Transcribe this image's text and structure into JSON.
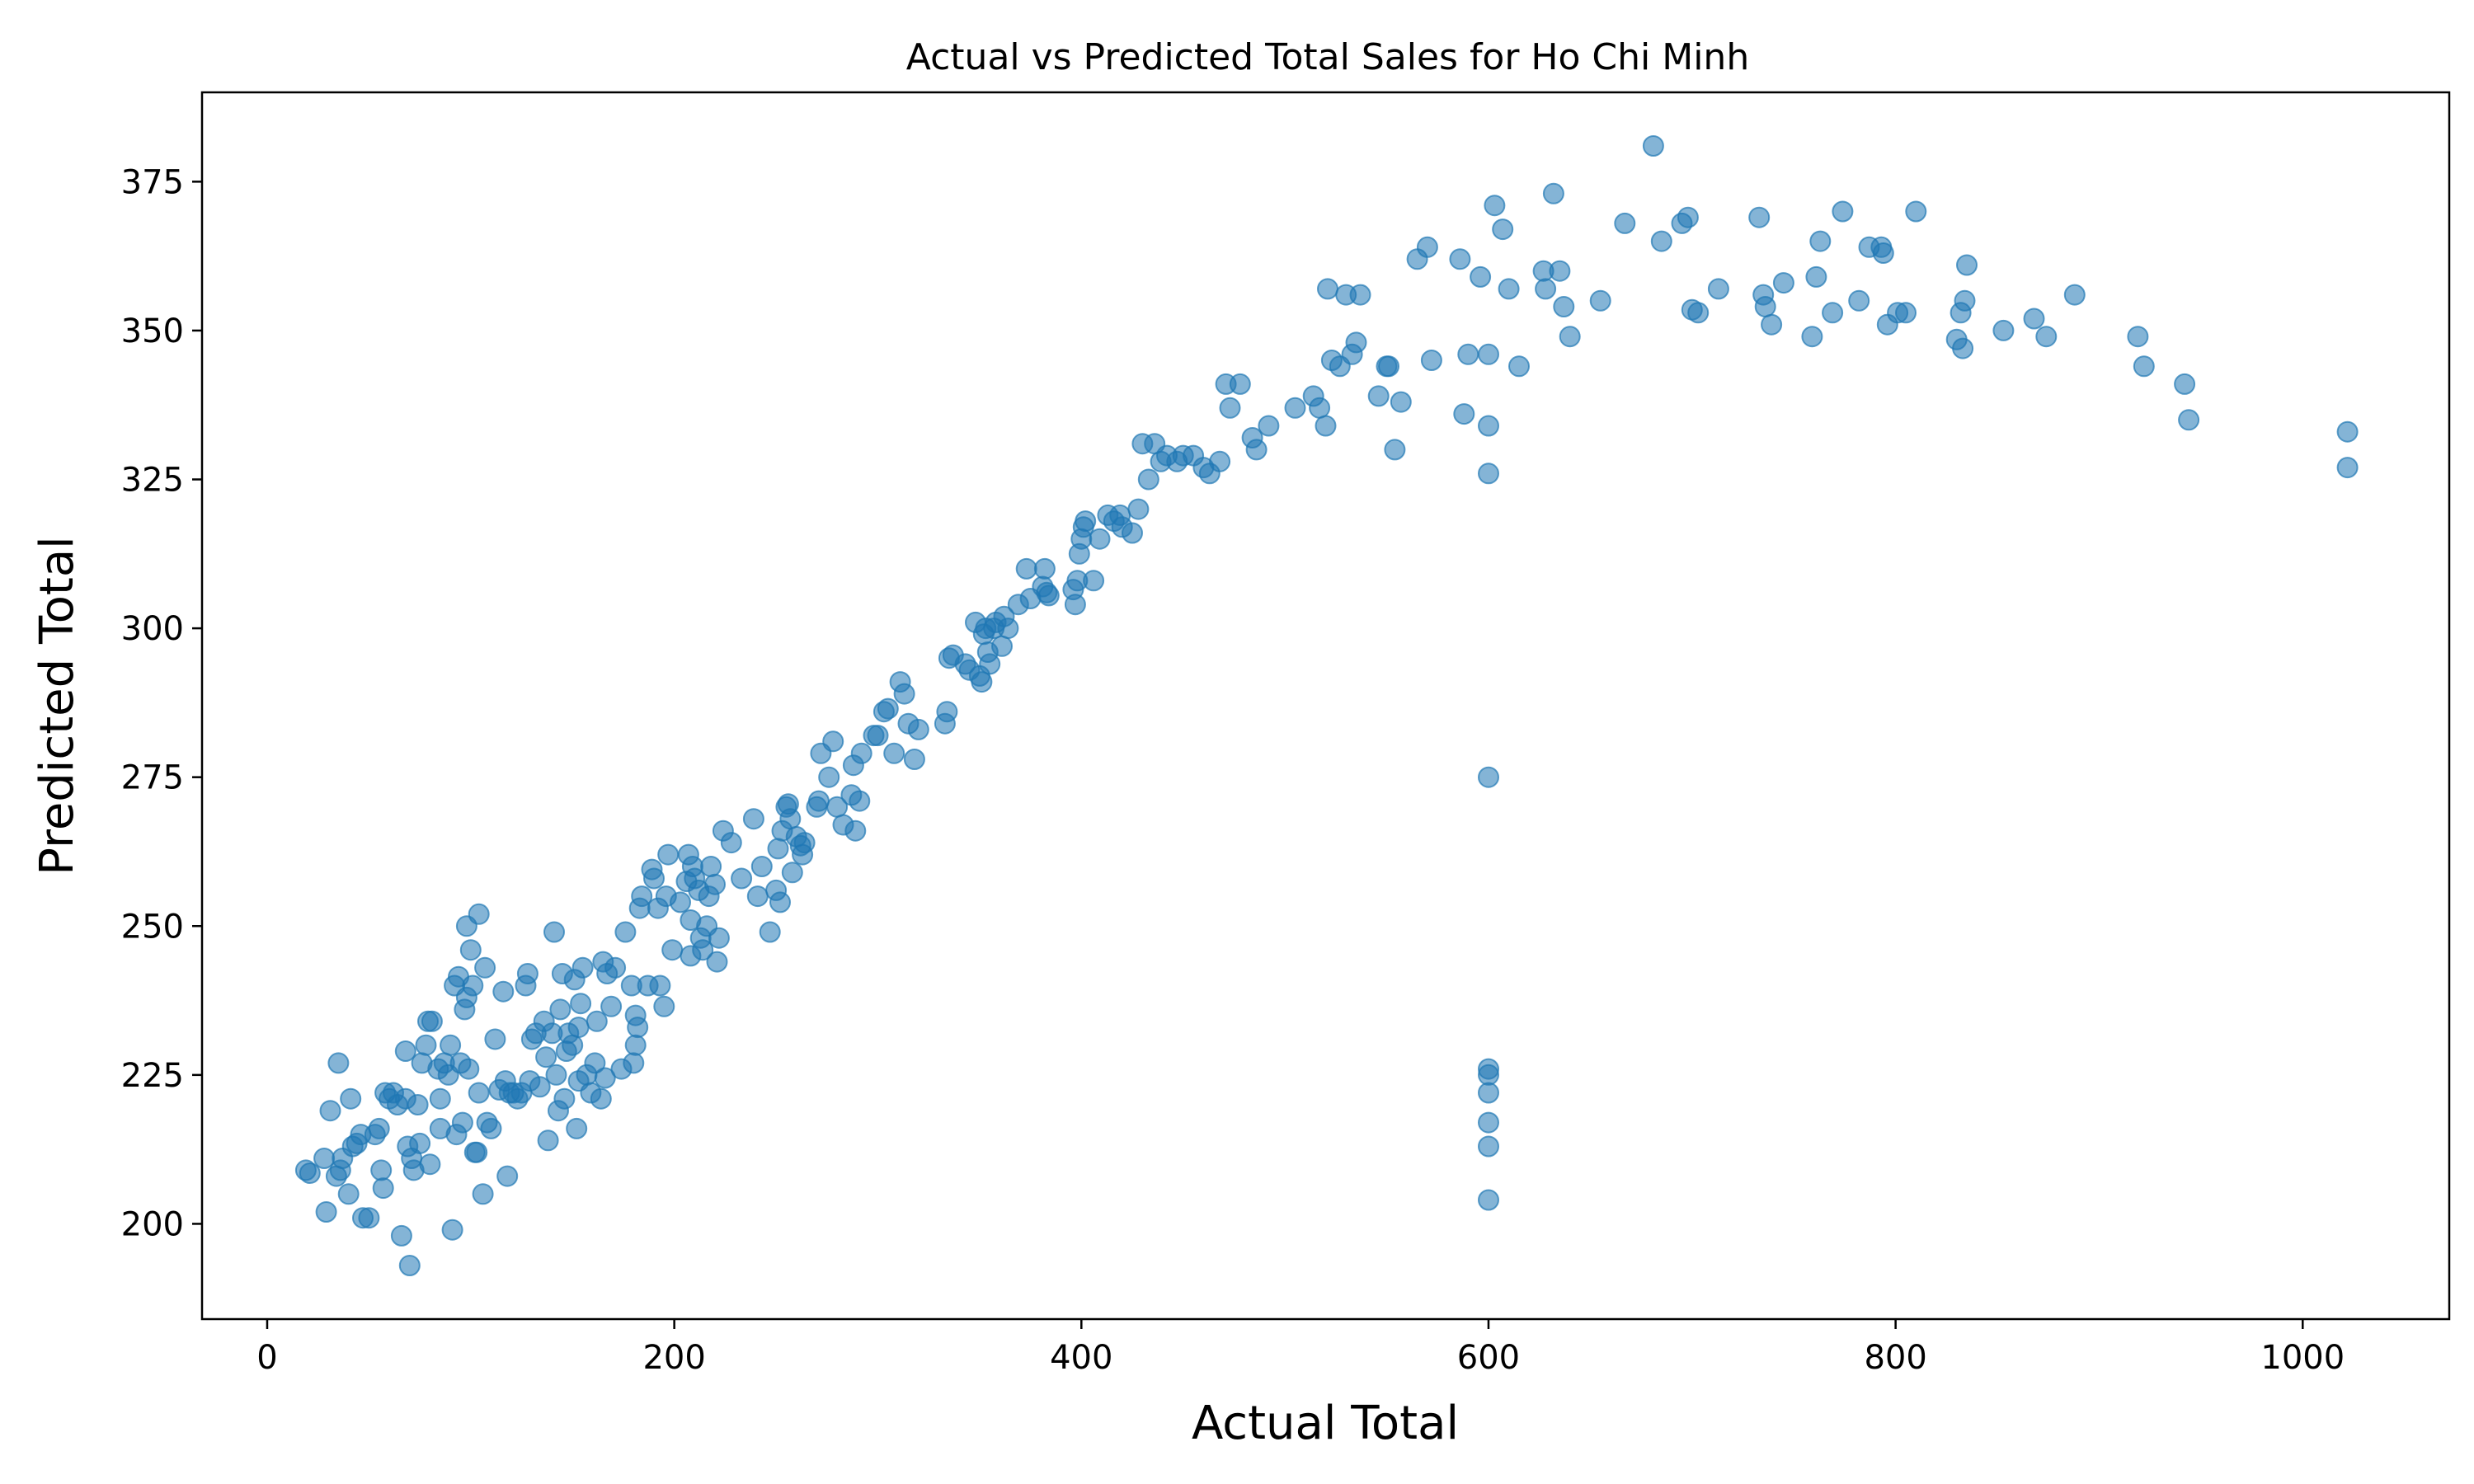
{
  "chart_data": {
    "type": "scatter",
    "title": "Actual vs Predicted Total Sales for Ho Chi Minh",
    "xlabel": "Actual Total",
    "ylabel": "Predicted Total",
    "xlim": [
      -32,
      1072
    ],
    "ylim": [
      184,
      390
    ],
    "xticks": [
      0,
      200,
      400,
      600,
      800,
      1000
    ],
    "yticks": [
      200,
      225,
      250,
      275,
      300,
      325,
      350,
      375
    ],
    "grid": false,
    "legend": "none",
    "marker_color": "#1f77b4",
    "marker_alpha": 0.55,
    "series": [
      {
        "points": [
          [
            19,
            209
          ],
          [
            21,
            208.5
          ],
          [
            28,
            211
          ],
          [
            29,
            202
          ],
          [
            31,
            219
          ],
          [
            34,
            208
          ],
          [
            35,
            227
          ],
          [
            36,
            209
          ],
          [
            37,
            211
          ],
          [
            40,
            205
          ],
          [
            41,
            221
          ],
          [
            42,
            213
          ],
          [
            44,
            213.5
          ],
          [
            46,
            215
          ],
          [
            47,
            201
          ],
          [
            50,
            201
          ],
          [
            53,
            215
          ],
          [
            55,
            216
          ],
          [
            56,
            209
          ],
          [
            57,
            206
          ],
          [
            58,
            222
          ],
          [
            60,
            221
          ],
          [
            62,
            222
          ],
          [
            64,
            220
          ],
          [
            66,
            198
          ],
          [
            68,
            229
          ],
          [
            68,
            221
          ],
          [
            69,
            213
          ],
          [
            70,
            193
          ],
          [
            71,
            211
          ],
          [
            72,
            209
          ],
          [
            74,
            220
          ],
          [
            75,
            213.5
          ],
          [
            76,
            227
          ],
          [
            78,
            230
          ],
          [
            79,
            234
          ],
          [
            80,
            210
          ],
          [
            81,
            234
          ],
          [
            84,
            226
          ],
          [
            85,
            216
          ],
          [
            85,
            221
          ],
          [
            87,
            227
          ],
          [
            89,
            225
          ],
          [
            90,
            230
          ],
          [
            91,
            199
          ],
          [
            92,
            240
          ],
          [
            93,
            215
          ],
          [
            94,
            241.5
          ],
          [
            95,
            227
          ],
          [
            96,
            217
          ],
          [
            97,
            236
          ],
          [
            98,
            238
          ],
          [
            98,
            250
          ],
          [
            99,
            226
          ],
          [
            100,
            246
          ],
          [
            101,
            240
          ],
          [
            102,
            212
          ],
          [
            103,
            212
          ],
          [
            104,
            252
          ],
          [
            104,
            222
          ],
          [
            106,
            205
          ],
          [
            107,
            243
          ],
          [
            108,
            217
          ],
          [
            110,
            216
          ],
          [
            112,
            231
          ],
          [
            114,
            222.5
          ],
          [
            116,
            239
          ],
          [
            117,
            224
          ],
          [
            118,
            208
          ],
          [
            119,
            222
          ],
          [
            121,
            222
          ],
          [
            123,
            221
          ],
          [
            125,
            222
          ],
          [
            127,
            240
          ],
          [
            128,
            242
          ],
          [
            129,
            224
          ],
          [
            130,
            231
          ],
          [
            132,
            232
          ],
          [
            134,
            223
          ],
          [
            136,
            234
          ],
          [
            137,
            228
          ],
          [
            138,
            214
          ],
          [
            140,
            232
          ],
          [
            141,
            249
          ],
          [
            142,
            225
          ],
          [
            143,
            219
          ],
          [
            144,
            236
          ],
          [
            145,
            242
          ],
          [
            146,
            221
          ],
          [
            147,
            229
          ],
          [
            148,
            232
          ],
          [
            150,
            230
          ],
          [
            151,
            241
          ],
          [
            152,
            216
          ],
          [
            153,
            224
          ],
          [
            153,
            233
          ],
          [
            154,
            237
          ],
          [
            155,
            243
          ],
          [
            157,
            225
          ],
          [
            159,
            222
          ],
          [
            161,
            227
          ],
          [
            162,
            234
          ],
          [
            164,
            221
          ],
          [
            165,
            244
          ],
          [
            166,
            224.5
          ],
          [
            167,
            242
          ],
          [
            169,
            236.5
          ],
          [
            171,
            243
          ],
          [
            174,
            226
          ],
          [
            176,
            249
          ],
          [
            179,
            240
          ],
          [
            180,
            227
          ],
          [
            181,
            230
          ],
          [
            181,
            235
          ],
          [
            182,
            233
          ],
          [
            183,
            253
          ],
          [
            184,
            255
          ],
          [
            187,
            240
          ],
          [
            189,
            259.5
          ],
          [
            190,
            258
          ],
          [
            192,
            253
          ],
          [
            193,
            240
          ],
          [
            195,
            236.5
          ],
          [
            196,
            255
          ],
          [
            197,
            262
          ],
          [
            199,
            246
          ],
          [
            203,
            254
          ],
          [
            206,
            257.5
          ],
          [
            207,
            262
          ],
          [
            208,
            251
          ],
          [
            208,
            245
          ],
          [
            209,
            260
          ],
          [
            210,
            258
          ],
          [
            212,
            256
          ],
          [
            213,
            248
          ],
          [
            214,
            246
          ],
          [
            216,
            250
          ],
          [
            217,
            255
          ],
          [
            218,
            260
          ],
          [
            220,
            257
          ],
          [
            221,
            244
          ],
          [
            222,
            248
          ],
          [
            224,
            266
          ],
          [
            228,
            264
          ],
          [
            233,
            258
          ],
          [
            239,
            268
          ],
          [
            241,
            255
          ],
          [
            243,
            260
          ],
          [
            247,
            249
          ],
          [
            250,
            256
          ],
          [
            251,
            263
          ],
          [
            252,
            254
          ],
          [
            253,
            266
          ],
          [
            255,
            270
          ],
          [
            256,
            270.5
          ],
          [
            257,
            268
          ],
          [
            258,
            259
          ],
          [
            260,
            265
          ],
          [
            262,
            263.5
          ],
          [
            263,
            262
          ],
          [
            264,
            264
          ],
          [
            270,
            270
          ],
          [
            271,
            271
          ],
          [
            272,
            279
          ],
          [
            276,
            275
          ],
          [
            278,
            281
          ],
          [
            280,
            270
          ],
          [
            283,
            267
          ],
          [
            287,
            272
          ],
          [
            288,
            277
          ],
          [
            289,
            266
          ],
          [
            291,
            271
          ],
          [
            292,
            279
          ],
          [
            298,
            282
          ],
          [
            300,
            282
          ],
          [
            303,
            286
          ],
          [
            305,
            286.5
          ],
          [
            308,
            279
          ],
          [
            311,
            291
          ],
          [
            313,
            289
          ],
          [
            315,
            284
          ],
          [
            318,
            278
          ],
          [
            320,
            283
          ],
          [
            333,
            284
          ],
          [
            334,
            286
          ],
          [
            335,
            295
          ],
          [
            337,
            295.5
          ],
          [
            343,
            294
          ],
          [
            345,
            293
          ],
          [
            348,
            301
          ],
          [
            350,
            292
          ],
          [
            351,
            291
          ],
          [
            352,
            299
          ],
          [
            353,
            300
          ],
          [
            354,
            296
          ],
          [
            355,
            294
          ],
          [
            357,
            300
          ],
          [
            358,
            301
          ],
          [
            361,
            297
          ],
          [
            362,
            302
          ],
          [
            364,
            300
          ],
          [
            369,
            304
          ],
          [
            373,
            310
          ],
          [
            375,
            305
          ],
          [
            381,
            307
          ],
          [
            382,
            310
          ],
          [
            383,
            306
          ],
          [
            384,
            305.5
          ],
          [
            396,
            306.5
          ],
          [
            397,
            304
          ],
          [
            398,
            308
          ],
          [
            399,
            312.5
          ],
          [
            400,
            315
          ],
          [
            401,
            317
          ],
          [
            402,
            318
          ],
          [
            406,
            308
          ],
          [
            409,
            315
          ],
          [
            413,
            319
          ],
          [
            416,
            318
          ],
          [
            419,
            319
          ],
          [
            420,
            317
          ],
          [
            425,
            316
          ],
          [
            428,
            320
          ],
          [
            430,
            331
          ],
          [
            433,
            325
          ],
          [
            436,
            331
          ],
          [
            439,
            328
          ],
          [
            442,
            329
          ],
          [
            447,
            328
          ],
          [
            450,
            329
          ],
          [
            455,
            329
          ],
          [
            460,
            327
          ],
          [
            463,
            326
          ],
          [
            468,
            328
          ],
          [
            471,
            341
          ],
          [
            473,
            337
          ],
          [
            478,
            341
          ],
          [
            484,
            332
          ],
          [
            486,
            330
          ],
          [
            492,
            334
          ],
          [
            505,
            337
          ],
          [
            514,
            339
          ],
          [
            517,
            337
          ],
          [
            520,
            334
          ],
          [
            521,
            357
          ],
          [
            523,
            345
          ],
          [
            527,
            344
          ],
          [
            530,
            356
          ],
          [
            533,
            346
          ],
          [
            535,
            348
          ],
          [
            537,
            356
          ],
          [
            546,
            339
          ],
          [
            550,
            344
          ],
          [
            551,
            344
          ],
          [
            554,
            330
          ],
          [
            557,
            338
          ],
          [
            565,
            362
          ],
          [
            570,
            364
          ],
          [
            572,
            345
          ],
          [
            586,
            362
          ],
          [
            588,
            336
          ],
          [
            590,
            346
          ],
          [
            596,
            359
          ],
          [
            600,
            346
          ],
          [
            600,
            334
          ],
          [
            600,
            326
          ],
          [
            600,
            275
          ],
          [
            600,
            226
          ],
          [
            600,
            225
          ],
          [
            600,
            222
          ],
          [
            600,
            217
          ],
          [
            600,
            213
          ],
          [
            600,
            204
          ],
          [
            603,
            371
          ],
          [
            607,
            367
          ],
          [
            610,
            357
          ],
          [
            615,
            344
          ],
          [
            627,
            360
          ],
          [
            628,
            357
          ],
          [
            632,
            373
          ],
          [
            635,
            360
          ],
          [
            637,
            354
          ],
          [
            640,
            349
          ],
          [
            655,
            355
          ],
          [
            667,
            368
          ],
          [
            681,
            381
          ],
          [
            685,
            365
          ],
          [
            695,
            368
          ],
          [
            698,
            369
          ],
          [
            700,
            353.5
          ],
          [
            703,
            353
          ],
          [
            713,
            357
          ],
          [
            733,
            369
          ],
          [
            735,
            356
          ],
          [
            736,
            354
          ],
          [
            739,
            351
          ],
          [
            745,
            358
          ],
          [
            759,
            349
          ],
          [
            761,
            359
          ],
          [
            763,
            365
          ],
          [
            769,
            353
          ],
          [
            774,
            370
          ],
          [
            782,
            355
          ],
          [
            787,
            364
          ],
          [
            793,
            364
          ],
          [
            794,
            363
          ],
          [
            796,
            351
          ],
          [
            801,
            353
          ],
          [
            805,
            353
          ],
          [
            810,
            370
          ],
          [
            830,
            348.5
          ],
          [
            832,
            353
          ],
          [
            833,
            347
          ],
          [
            834,
            355
          ],
          [
            835,
            361
          ],
          [
            853,
            350
          ],
          [
            868,
            352
          ],
          [
            874,
            349
          ],
          [
            888,
            356
          ],
          [
            919,
            349
          ],
          [
            922,
            344
          ],
          [
            942,
            341
          ],
          [
            944,
            335
          ],
          [
            1022,
            333
          ],
          [
            1022,
            327
          ]
        ]
      }
    ]
  }
}
